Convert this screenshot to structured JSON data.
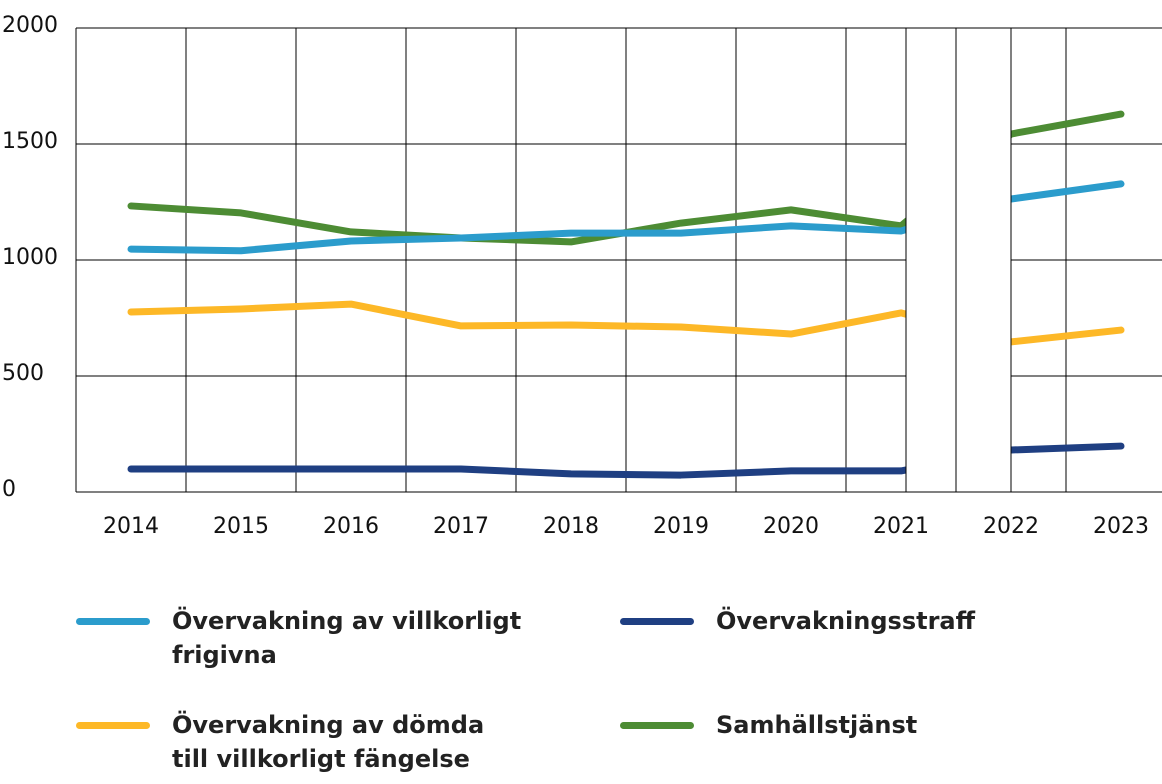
{
  "chart_data": {
    "type": "line",
    "categories": [
      "2014",
      "2015",
      "2016",
      "2017",
      "2018",
      "2019",
      "2020",
      "2021",
      "2022",
      "2023"
    ],
    "series": [
      {
        "name": "Övervakning av villkorligt frigivna",
        "color": "#2b9ccc",
        "values": [
          1047,
          1040,
          1082,
          1095,
          1116,
          1116,
          1147,
          1125,
          1263,
          1328
        ]
      },
      {
        "name": "Övervakning av dömda till villkorligt fängelse",
        "color": "#fdb827",
        "values": [
          776,
          789,
          810,
          716,
          720,
          711,
          681,
          772,
          647,
          698
        ]
      },
      {
        "name": "Övervakningsstraff",
        "color": "#1f3f82",
        "values": [
          99,
          99,
          99,
          99,
          78,
          73,
          91,
          91,
          181,
          198
        ]
      },
      {
        "name": "Samhällstjänst",
        "color": "#4d8c34",
        "values": [
          1233,
          1203,
          1121,
          1095,
          1078,
          1159,
          1216,
          1147,
          1543,
          1629
        ]
      }
    ],
    "ylim": [
      0,
      2000
    ],
    "yticks": [
      0,
      500,
      1000,
      1500,
      2000
    ],
    "grid": true
  }
}
